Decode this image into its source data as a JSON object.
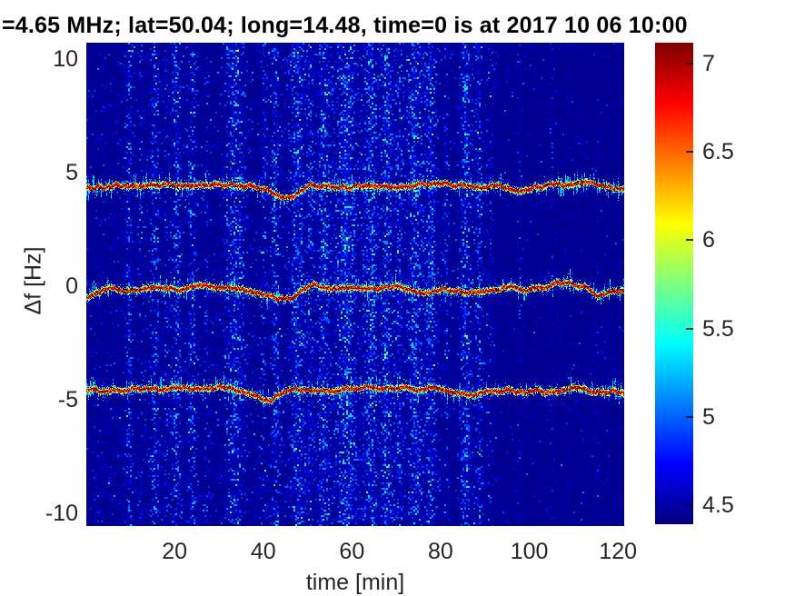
{
  "chart_data": {
    "type": "heatmap",
    "subtype": "doppler-spectrogram",
    "title": "=4.65 MHz;  lat=50.04; long=14.48, time=0 is at 2017 10 06 10:00",
    "xlabel": "time [min]",
    "ylabel": "Δf [Hz]",
    "xlim": [
      0.1,
      121.4
    ],
    "ylim": [
      -10.56,
      10.72
    ],
    "x_ticks": [
      20,
      40,
      60,
      80,
      100,
      120
    ],
    "y_ticks": [
      10,
      5,
      0,
      -5,
      -10
    ],
    "grid": false,
    "colormap": "jet",
    "colormap_anchors": {
      "0.0": "#00008f",
      "0.125": "#0000ff",
      "0.375": "#00ffff",
      "0.625": "#ffff00",
      "0.875": "#ff0000",
      "1.0": "#800000"
    },
    "clim": [
      4.392,
      7.118
    ],
    "colorbar_ticks": [
      7,
      6.5,
      6,
      5.5,
      5,
      4.5
    ],
    "colorbar_position": "right",
    "background_level": 4.45,
    "doppler_traces": [
      {
        "name": "upper-trace",
        "mean_offset_hz": 4.4,
        "points": [
          [
            0,
            4.35
          ],
          [
            3,
            4.3
          ],
          [
            6,
            4.45
          ],
          [
            10,
            4.4
          ],
          [
            14,
            4.45
          ],
          [
            18,
            4.5
          ],
          [
            22,
            4.45
          ],
          [
            26,
            4.4
          ],
          [
            30,
            4.45
          ],
          [
            34,
            4.5
          ],
          [
            38,
            4.4
          ],
          [
            41,
            4.2
          ],
          [
            44,
            3.95
          ],
          [
            46,
            3.9
          ],
          [
            48,
            4.15
          ],
          [
            50,
            4.4
          ],
          [
            53,
            4.45
          ],
          [
            57,
            4.4
          ],
          [
            61,
            4.45
          ],
          [
            65,
            4.4
          ],
          [
            69,
            4.45
          ],
          [
            73,
            4.4
          ],
          [
            77,
            4.5
          ],
          [
            80,
            4.55
          ],
          [
            83,
            4.45
          ],
          [
            87,
            4.4
          ],
          [
            90,
            4.35
          ],
          [
            94,
            4.4
          ],
          [
            98,
            4.3
          ],
          [
            102,
            4.4
          ],
          [
            106,
            4.45
          ],
          [
            110,
            4.5
          ],
          [
            113,
            4.6
          ],
          [
            116,
            4.5
          ],
          [
            119,
            4.4
          ],
          [
            121.4,
            4.4
          ]
        ]
      },
      {
        "name": "center-trace",
        "mean_offset_hz": -0.1,
        "points": [
          [
            0,
            -0.45
          ],
          [
            2,
            -0.35
          ],
          [
            5,
            -0.15
          ],
          [
            9,
            -0.2
          ],
          [
            13,
            -0.1
          ],
          [
            17,
            -0.05
          ],
          [
            21,
            -0.1
          ],
          [
            25,
            0.0
          ],
          [
            29,
            -0.05
          ],
          [
            33,
            -0.1
          ],
          [
            37,
            -0.2
          ],
          [
            40,
            -0.3
          ],
          [
            43,
            -0.55
          ],
          [
            46,
            -0.5
          ],
          [
            48,
            -0.1
          ],
          [
            51,
            0.0
          ],
          [
            55,
            -0.05
          ],
          [
            59,
            -0.1
          ],
          [
            63,
            -0.05
          ],
          [
            67,
            -0.1
          ],
          [
            71,
            -0.15
          ],
          [
            74,
            -0.3
          ],
          [
            77,
            -0.25
          ],
          [
            80,
            -0.1
          ],
          [
            84,
            -0.2
          ],
          [
            88,
            -0.3
          ],
          [
            91,
            -0.25
          ],
          [
            95,
            -0.1
          ],
          [
            99,
            -0.15
          ],
          [
            103,
            -0.05
          ],
          [
            106,
            0.15
          ],
          [
            109,
            0.25
          ],
          [
            112,
            0.0
          ],
          [
            115,
            -0.25
          ],
          [
            117,
            -0.3
          ],
          [
            119,
            -0.15
          ],
          [
            121.4,
            -0.2
          ]
        ]
      },
      {
        "name": "lower-trace",
        "mean_offset_hz": -4.6,
        "points": [
          [
            0,
            -4.6
          ],
          [
            3,
            -4.7
          ],
          [
            6,
            -4.65
          ],
          [
            9,
            -4.55
          ],
          [
            13,
            -4.5
          ],
          [
            17,
            -4.55
          ],
          [
            21,
            -4.45
          ],
          [
            25,
            -4.5
          ],
          [
            29,
            -4.55
          ],
          [
            33,
            -4.5
          ],
          [
            36,
            -4.6
          ],
          [
            38,
            -4.8
          ],
          [
            40,
            -5.0
          ],
          [
            42,
            -4.95
          ],
          [
            45,
            -4.7
          ],
          [
            47,
            -4.5
          ],
          [
            50,
            -4.55
          ],
          [
            54,
            -4.6
          ],
          [
            58,
            -4.55
          ],
          [
            62,
            -4.5
          ],
          [
            66,
            -4.55
          ],
          [
            70,
            -4.6
          ],
          [
            74,
            -4.55
          ],
          [
            78,
            -4.5
          ],
          [
            81,
            -4.6
          ],
          [
            85,
            -4.7
          ],
          [
            88,
            -4.75
          ],
          [
            91,
            -4.7
          ],
          [
            95,
            -4.65
          ],
          [
            99,
            -4.7
          ],
          [
            103,
            -4.6
          ],
          [
            107,
            -4.55
          ],
          [
            110,
            -4.5
          ],
          [
            114,
            -4.6
          ],
          [
            118,
            -4.65
          ],
          [
            121.4,
            -4.6
          ]
        ]
      }
    ],
    "noise_bands": [
      [
        9.6,
        1.2,
        0.5
      ],
      [
        12.2,
        0.8,
        0.28
      ],
      [
        15.4,
        1.4,
        0.5
      ],
      [
        17.8,
        0.8,
        0.28
      ],
      [
        20.2,
        1.6,
        0.55
      ],
      [
        23.9,
        1.5,
        0.5
      ],
      [
        27,
        0.8,
        0.28
      ],
      [
        33.5,
        3.4,
        0.6
      ],
      [
        40,
        1.0,
        0.35
      ],
      [
        42.6,
        1.6,
        0.55
      ],
      [
        47.6,
        2.6,
        0.6
      ],
      [
        50.5,
        1.2,
        0.4
      ],
      [
        53.4,
        2.0,
        0.58
      ],
      [
        58.5,
        3.8,
        0.62
      ],
      [
        64,
        2.4,
        0.6
      ],
      [
        67.7,
        2.0,
        0.6
      ],
      [
        70.5,
        1.4,
        0.45
      ],
      [
        74,
        2.6,
        0.6
      ],
      [
        77.6,
        1.9,
        0.55
      ],
      [
        81,
        1.0,
        0.3
      ],
      [
        85.5,
        1.9,
        0.6
      ],
      [
        88.5,
        1.4,
        0.45
      ],
      [
        91,
        0.8,
        0.25
      ],
      [
        97.5,
        0.7,
        0.2
      ],
      [
        105,
        0.6,
        0.16
      ],
      [
        115,
        0.5,
        0.1
      ]
    ],
    "noise_floor": {
      "base_density_active": 0.1,
      "base_density_quiet": 0.032,
      "active_region_end_min": 92,
      "elevated_band": [
        44,
        80,
        0.07
      ]
    }
  }
}
